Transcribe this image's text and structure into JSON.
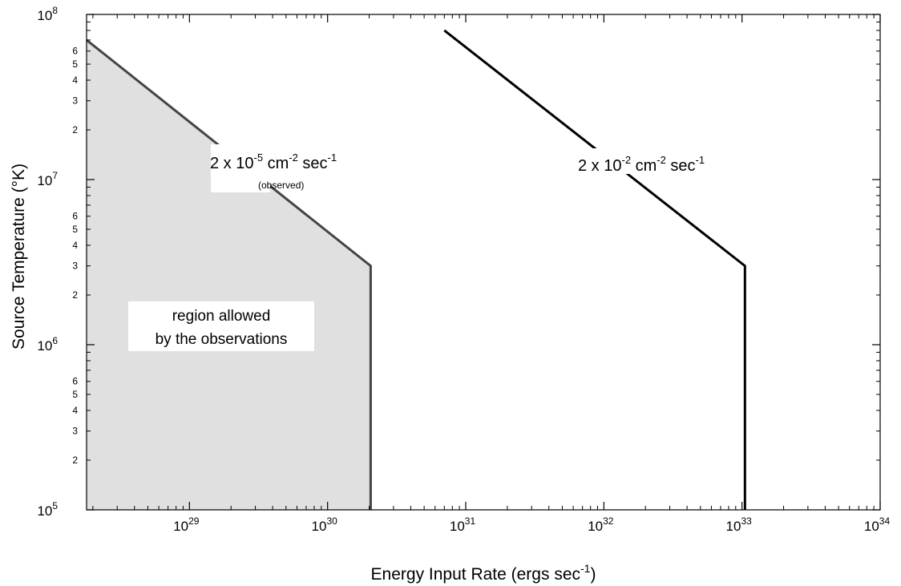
{
  "chart_data": {
    "type": "line",
    "xscale": "log",
    "yscale": "log",
    "xlim": [
      1.8e+28,
      1e+34
    ],
    "ylim": [
      100000.0,
      100000000.0
    ],
    "xlabel": {
      "base": "Energy Input Rate (ergs sec",
      "sup": "-1",
      "tail": ")"
    },
    "ylabel": "Source Temperature (°K)",
    "x_ticks": [
      {
        "value": 1e+29,
        "base": "10",
        "exp": "29"
      },
      {
        "value": 1e+30,
        "base": "10",
        "exp": "30"
      },
      {
        "value": 1e+31,
        "base": "10",
        "exp": "31"
      },
      {
        "value": 1e+32,
        "base": "10",
        "exp": "32"
      },
      {
        "value": 1e+33,
        "base": "10",
        "exp": "33"
      },
      {
        "value": 1e+34,
        "base": "10",
        "exp": "34"
      }
    ],
    "y_major_ticks": [
      {
        "value": 100000.0,
        "base": "10",
        "exp": "5"
      },
      {
        "value": 1000000.0,
        "base": "10",
        "exp": "6"
      },
      {
        "value": 10000000.0,
        "base": "10",
        "exp": "7"
      },
      {
        "value": 100000000.0,
        "base": "10",
        "exp": "8"
      }
    ],
    "y_minor_labels": [
      {
        "value": 200000.0,
        "label": "2"
      },
      {
        "value": 300000.0,
        "label": "3"
      },
      {
        "value": 400000.0,
        "label": "4"
      },
      {
        "value": 500000.0,
        "label": "5"
      },
      {
        "value": 600000.0,
        "label": "6"
      },
      {
        "value": 2000000.0,
        "label": "2"
      },
      {
        "value": 3000000.0,
        "label": "3"
      },
      {
        "value": 4000000.0,
        "label": "4"
      },
      {
        "value": 5000000.0,
        "label": "5"
      },
      {
        "value": 6000000.0,
        "label": "6"
      },
      {
        "value": 20000000.0,
        "label": "2"
      },
      {
        "value": 30000000.0,
        "label": "3"
      },
      {
        "value": 40000000.0,
        "label": "4"
      },
      {
        "value": 50000000.0,
        "label": "5"
      },
      {
        "value": 60000000.0,
        "label": "6"
      }
    ],
    "series": [
      {
        "label": {
          "pre": "2 x 10",
          "exp1": "-5",
          "mid": " cm",
          "exp2": "-2",
          "mid2": " sec",
          "exp3": "-1",
          "note": "(observed)"
        },
        "points": [
          [
            1.8e+28,
            70000000.0
          ],
          [
            2.05e+30,
            3000000.0
          ],
          [
            2.05e+30,
            100000.0
          ]
        ],
        "color": "#444444",
        "fill": "#e0e0e0"
      },
      {
        "label": {
          "pre": "2 x 10",
          "exp1": "-2",
          "mid": " cm",
          "exp2": "-2",
          "mid2": " sec",
          "exp3": "-1"
        },
        "points": [
          [
            7e+30,
            80000000.0
          ],
          [
            1.05e+33,
            3000000.0
          ],
          [
            1.05e+33,
            100000.0
          ]
        ],
        "color": "#000000"
      }
    ],
    "region_label": [
      "region allowed",
      "by the observations"
    ]
  }
}
